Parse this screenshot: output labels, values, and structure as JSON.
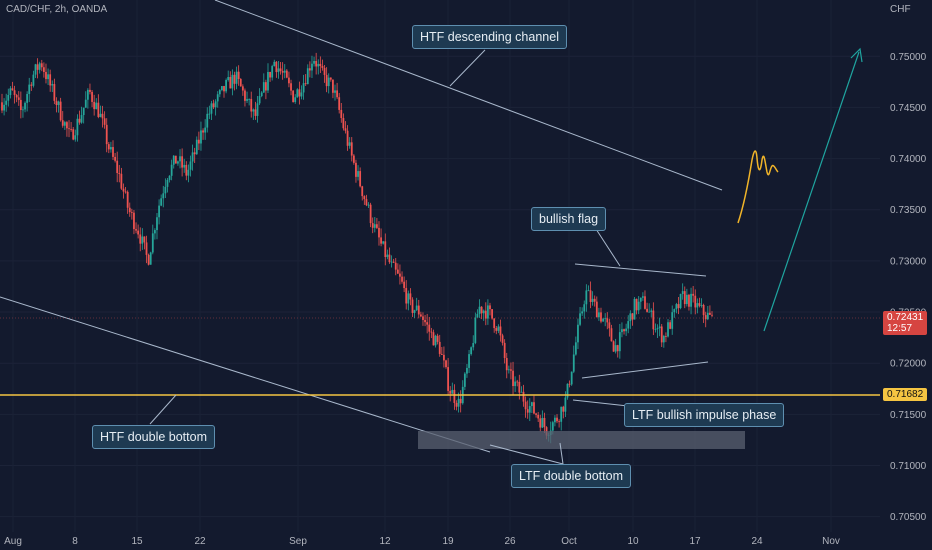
{
  "header": {
    "symbol": "CAD/CHF, 2h, OANDA",
    "currency": "CHF"
  },
  "chart_data": {
    "type": "candlestick",
    "y_ticks": [
      "0.75000",
      "0.74500",
      "0.74000",
      "0.73500",
      "0.73000",
      "0.72500",
      "0.72000",
      "0.71500",
      "0.71000",
      "0.70500"
    ],
    "y_tick_values": [
      0.75,
      0.745,
      0.74,
      0.735,
      0.73,
      0.725,
      0.72,
      0.715,
      0.71,
      0.705
    ],
    "ylim": [
      0.7035,
      0.7555
    ],
    "x_ticks": [
      "Aug",
      "8",
      "15",
      "22",
      "Sep",
      "12",
      "19",
      "26",
      "Oct",
      "10",
      "17",
      "24",
      "Nov"
    ],
    "price_path": [
      0.7455,
      0.7465,
      0.7445,
      0.7478,
      0.7495,
      0.747,
      0.7445,
      0.742,
      0.744,
      0.7465,
      0.7445,
      0.741,
      0.7385,
      0.735,
      0.733,
      0.73,
      0.735,
      0.7385,
      0.74,
      0.7385,
      0.741,
      0.744,
      0.7455,
      0.747,
      0.748,
      0.746,
      0.744,
      0.747,
      0.7495,
      0.748,
      0.746,
      0.7475,
      0.75,
      0.748,
      0.747,
      0.7435,
      0.74,
      0.737,
      0.734,
      0.7315,
      0.7295,
      0.728,
      0.7255,
      0.725,
      0.723,
      0.7215,
      0.7175,
      0.716,
      0.72,
      0.7255,
      0.725,
      0.7235,
      0.719,
      0.7175,
      0.716,
      0.715,
      0.7135,
      0.7145,
      0.7165,
      0.722,
      0.727,
      0.7255,
      0.724,
      0.7215,
      0.723,
      0.7255,
      0.726,
      0.724,
      0.7225,
      0.7245,
      0.7265,
      0.726,
      0.725,
      0.7243
    ],
    "current_price": {
      "label": "0.72431",
      "countdown": "12:57",
      "value": 0.72431
    },
    "support_level": {
      "label": "0.71682",
      "value": 0.71682
    },
    "annotations": [
      "HTF descending channel",
      "bullish flag",
      "HTF double bottom",
      "LTF double bottom",
      "LTF bullish impulse phase"
    ],
    "colors": {
      "up": "#26a69a",
      "down": "#ef5350",
      "support": "#f5c542",
      "channel": "#a9b8cc",
      "arrow": "#1fa5a0",
      "background": "#131a2e"
    }
  }
}
